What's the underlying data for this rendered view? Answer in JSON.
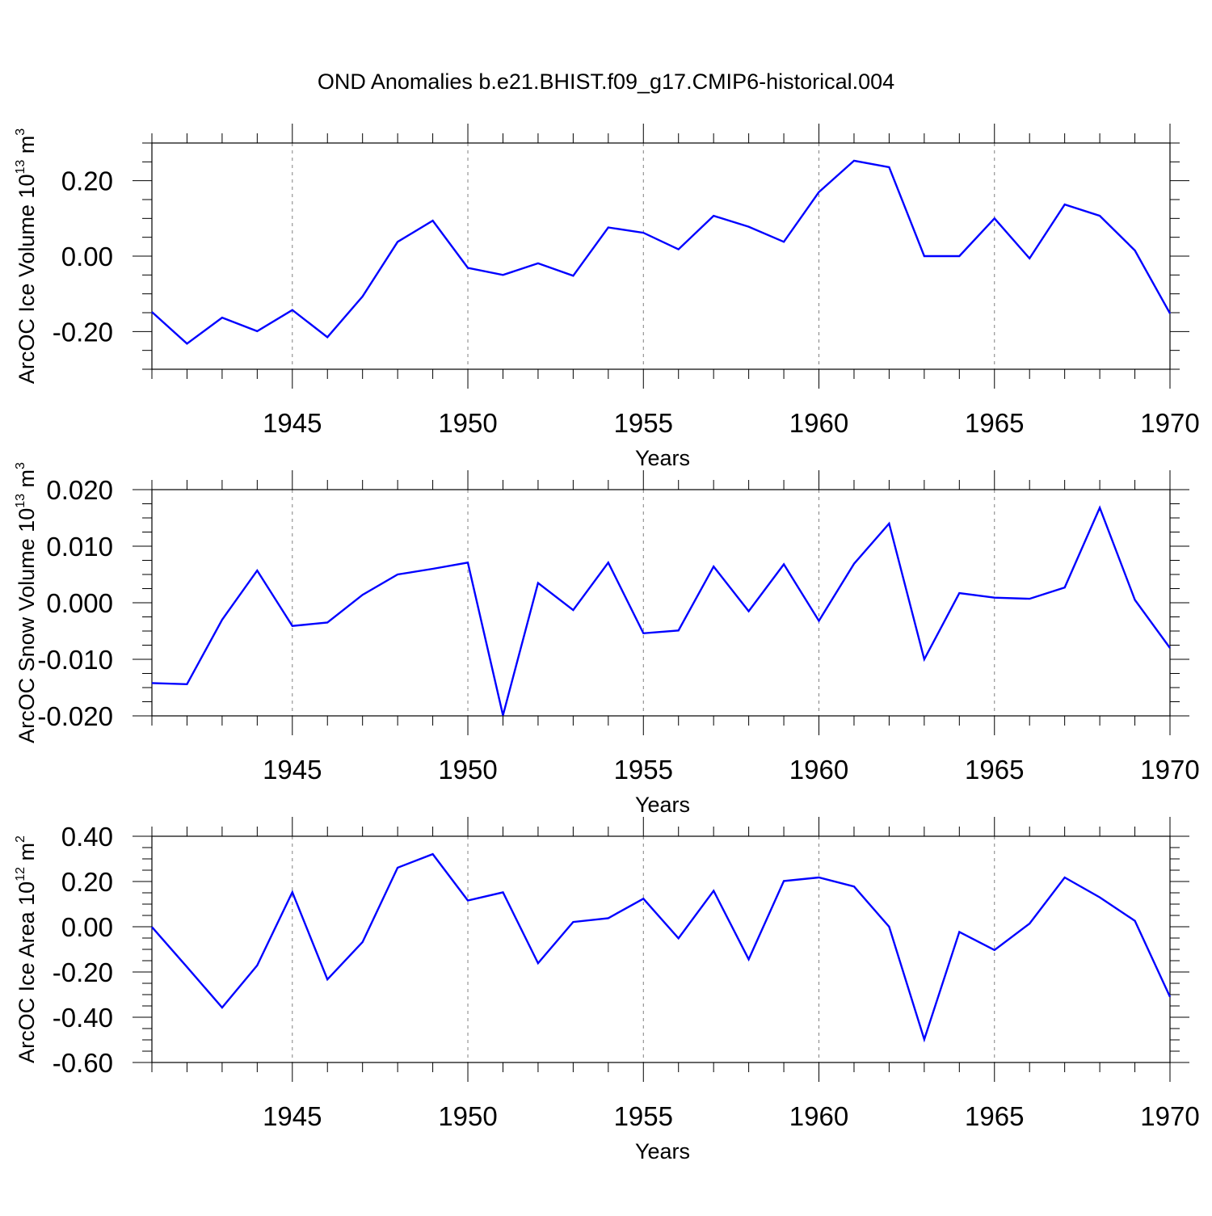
{
  "figure_title": "OND Anomalies b.e21.BHIST.f09_g17.CMIP6-historical.004",
  "colors": {
    "line": "#0000ff",
    "axis": "#000000",
    "grid": "#808080"
  },
  "chart_data": [
    {
      "type": "line",
      "ylabel": {
        "text": "ArcOC Ice Volume 10",
        "exponent": "13",
        "unit": " m",
        "unit_exponent": "3"
      },
      "xlabel": "Years",
      "xlim": [
        1941,
        1970
      ],
      "ylim": [
        -0.3,
        0.3
      ],
      "ytick_values": [
        -0.2,
        0.0,
        0.2
      ],
      "ytick_labels": [
        "-0.20",
        "0.00",
        "0.20"
      ],
      "xtick_values": [
        1945,
        1950,
        1955,
        1960,
        1965,
        1970
      ],
      "xtick_labels": [
        "1945",
        "1950",
        "1955",
        "1960",
        "1965",
        "1970"
      ],
      "x": [
        1941,
        1942,
        1943,
        1944,
        1945,
        1946,
        1947,
        1948,
        1949,
        1950,
        1951,
        1952,
        1953,
        1954,
        1955,
        1956,
        1957,
        1958,
        1959,
        1960,
        1961,
        1962,
        1963,
        1964,
        1965,
        1966,
        1967,
        1968,
        1969,
        1970
      ],
      "series": [
        {
          "values": [
            -0.148,
            -0.232,
            -0.163,
            -0.199,
            -0.143,
            -0.215,
            -0.107,
            0.038,
            0.094,
            -0.031,
            -0.05,
            -0.019,
            -0.052,
            0.076,
            0.062,
            0.018,
            0.107,
            0.078,
            0.038,
            0.17,
            0.253,
            0.236,
            0.0,
            0.0,
            0.1,
            -0.006,
            0.137,
            0.107,
            0.015,
            -0.152
          ]
        }
      ]
    },
    {
      "type": "line",
      "ylabel": {
        "text": "ArcOC Snow Volume 10",
        "exponent": "13",
        "unit": " m",
        "unit_exponent": "3"
      },
      "xlabel": "Years",
      "xlim": [
        1941,
        1970
      ],
      "ylim": [
        -0.02,
        0.02
      ],
      "ytick_values": [
        -0.02,
        -0.01,
        0.0,
        0.01,
        0.02
      ],
      "ytick_labels": [
        "-0.020",
        "-0.010",
        "0.000",
        "0.010",
        "0.020"
      ],
      "xtick_values": [
        1945,
        1950,
        1955,
        1960,
        1965,
        1970
      ],
      "xtick_labels": [
        "1945",
        "1950",
        "1955",
        "1960",
        "1965",
        "1970"
      ],
      "x": [
        1941,
        1942,
        1943,
        1944,
        1945,
        1946,
        1947,
        1948,
        1949,
        1950,
        1951,
        1952,
        1953,
        1954,
        1955,
        1956,
        1957,
        1958,
        1959,
        1960,
        1961,
        1962,
        1963,
        1964,
        1965,
        1966,
        1967,
        1968,
        1969,
        1970
      ],
      "series": [
        {
          "values": [
            -0.0142,
            -0.0144,
            -0.003,
            0.0057,
            -0.0041,
            -0.0035,
            0.0014,
            0.005,
            0.006,
            0.0071,
            -0.0199,
            0.0035,
            -0.0013,
            0.0071,
            -0.0054,
            -0.0049,
            0.0064,
            -0.0015,
            0.0068,
            -0.0032,
            0.0069,
            0.014,
            -0.01,
            0.0017,
            0.0009,
            0.0007,
            0.0027,
            0.0168,
            0.0005,
            -0.008
          ]
        }
      ]
    },
    {
      "type": "line",
      "ylabel": {
        "text": "ArcOC Ice Area 10",
        "exponent": "12",
        "unit": " m",
        "unit_exponent": "2"
      },
      "xlabel": "Years",
      "xlim": [
        1941,
        1970
      ],
      "ylim": [
        -0.6,
        0.4
      ],
      "ytick_values": [
        -0.6,
        -0.4,
        -0.2,
        0.0,
        0.2,
        0.4
      ],
      "ytick_labels": [
        "-0.60",
        "-0.40",
        "-0.20",
        "0.00",
        "0.20",
        "0.40"
      ],
      "xtick_values": [
        1945,
        1950,
        1955,
        1960,
        1965,
        1970
      ],
      "xtick_labels": [
        "1945",
        "1950",
        "1955",
        "1960",
        "1965",
        "1970"
      ],
      "x": [
        1941,
        1942,
        1943,
        1944,
        1945,
        1946,
        1947,
        1948,
        1949,
        1950,
        1951,
        1952,
        1953,
        1954,
        1955,
        1956,
        1957,
        1958,
        1959,
        1960,
        1961,
        1962,
        1963,
        1964,
        1965,
        1966,
        1967,
        1968,
        1969,
        1970
      ],
      "series": [
        {
          "values": [
            -0.001,
            -0.178,
            -0.357,
            -0.171,
            0.153,
            -0.233,
            -0.068,
            0.261,
            0.321,
            0.116,
            0.152,
            -0.161,
            0.021,
            0.038,
            0.124,
            -0.051,
            0.159,
            -0.144,
            0.202,
            0.218,
            0.178,
            0.0,
            -0.498,
            -0.023,
            -0.103,
            0.014,
            0.218,
            0.13,
            0.026,
            -0.31
          ]
        }
      ]
    }
  ]
}
